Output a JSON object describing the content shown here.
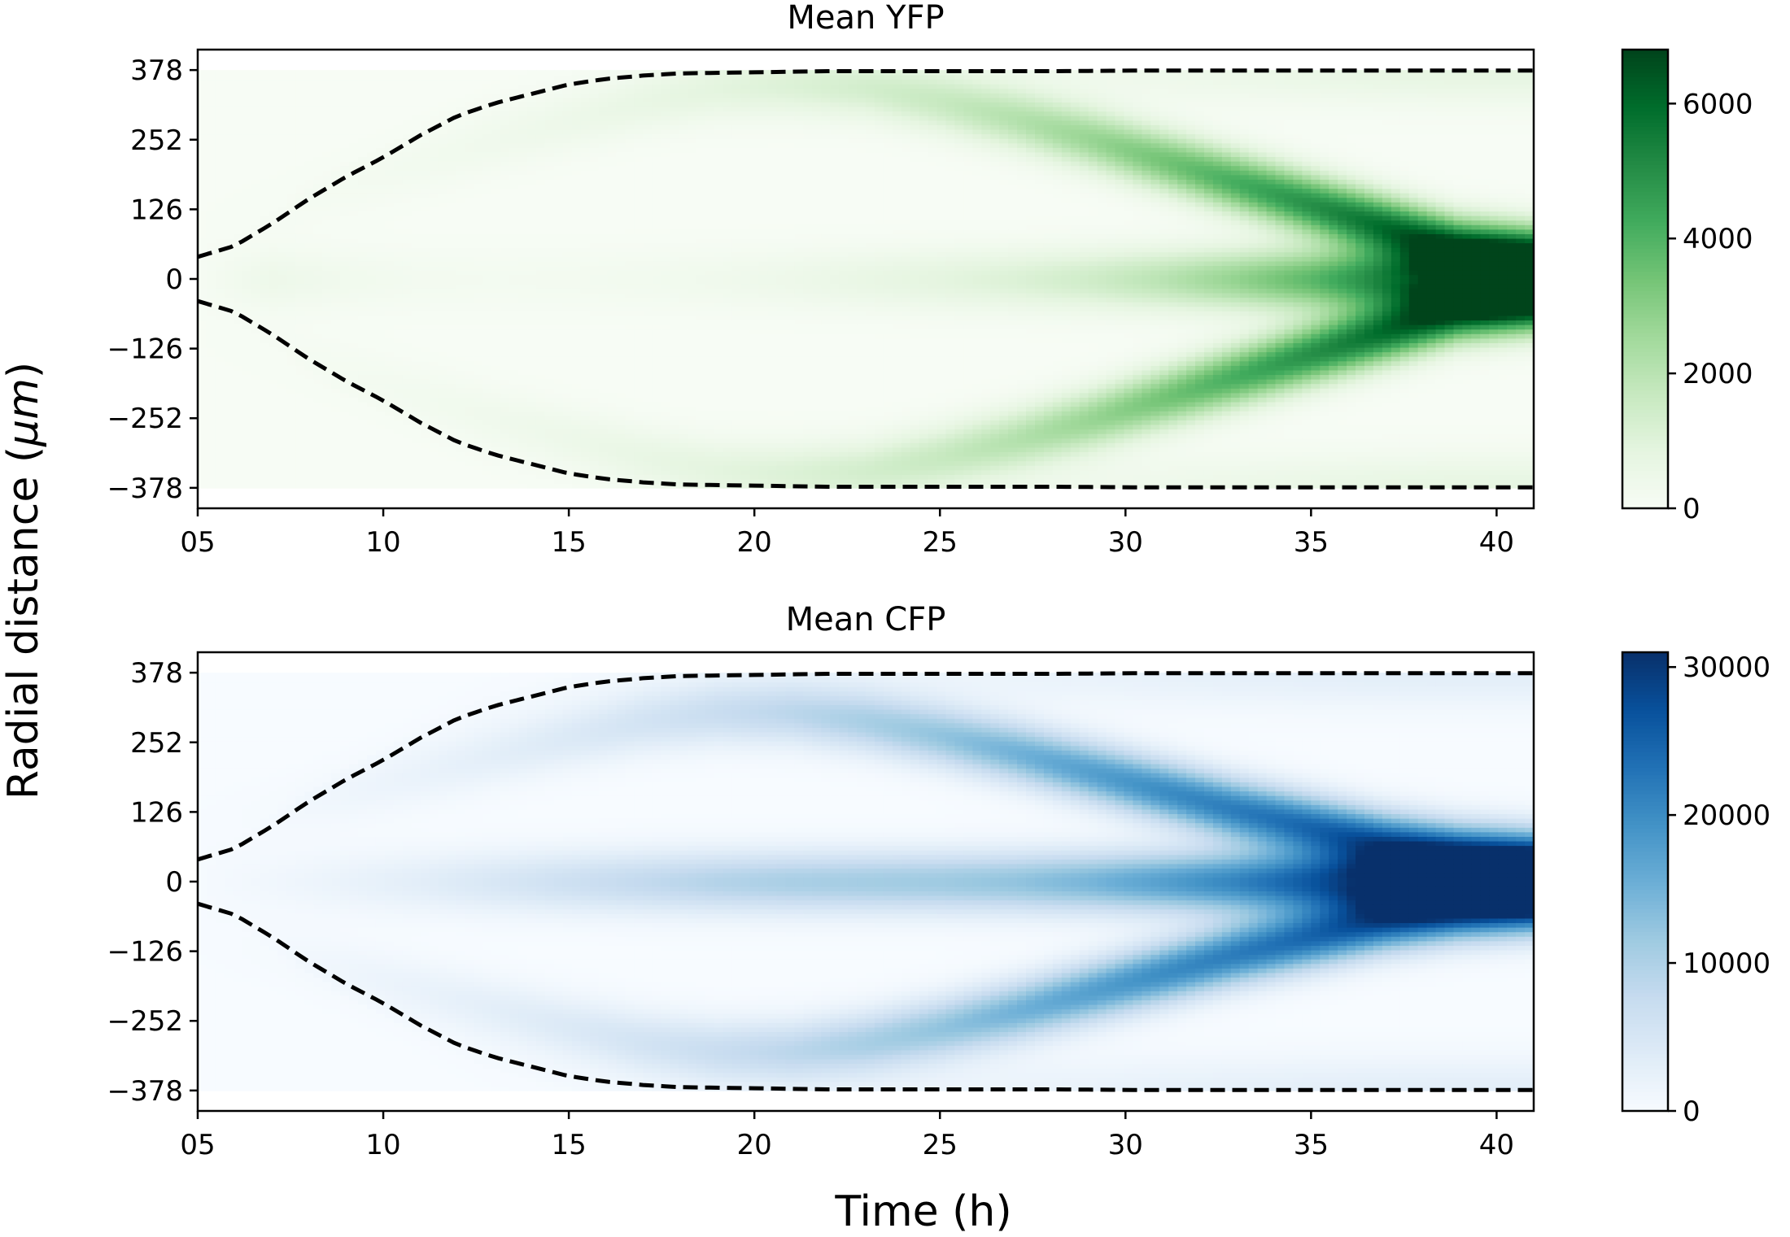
{
  "figure": {
    "xlabel": "Time (h)",
    "ylabel": "Radial distance (μm)",
    "ylabel_prefix": "Radial distance (",
    "ylabel_unit": "μm",
    "ylabel_suffix": ")"
  },
  "chart_data": [
    {
      "type": "heatmap",
      "title": "Mean YFP",
      "colormap": "Greens",
      "colormap_stops": [
        "#f7fcf5",
        "#e5f5e0",
        "#c7e9c0",
        "#a1d99b",
        "#74c476",
        "#41ab5d",
        "#238b45",
        "#006d2c",
        "#00441b"
      ],
      "xlim": [
        5,
        41
      ],
      "xticks": [
        5,
        10,
        15,
        20,
        25,
        30,
        35,
        40
      ],
      "xtick_labels": [
        "05",
        "10",
        "15",
        "20",
        "25",
        "30",
        "35",
        "40"
      ],
      "ylim": [
        -415,
        415
      ],
      "yticks": [
        378,
        252,
        126,
        0,
        -126,
        -252,
        -378
      ],
      "ytick_labels": [
        "378",
        "252",
        "126",
        "0",
        "−126",
        "−252",
        "−378"
      ],
      "color_range": [
        0,
        6800
      ],
      "colorbar_ticks": [
        0,
        2000,
        4000,
        6000
      ],
      "colorbar_tick_labels": [
        "0",
        "2000",
        "4000",
        "6000"
      ],
      "time_h": [
        5,
        7,
        9,
        11,
        13,
        15,
        17,
        19,
        21,
        23,
        25,
        27,
        29,
        31,
        33,
        35,
        37,
        39,
        41
      ],
      "ring_radius_um": [
        110,
        135,
        170,
        210,
        250,
        285,
        320,
        345,
        350,
        345,
        320,
        290,
        255,
        215,
        175,
        135,
        95,
        55,
        40
      ],
      "ring_intensity": [
        30,
        80,
        150,
        230,
        330,
        450,
        620,
        800,
        1000,
        1250,
        1600,
        2100,
        2700,
        3400,
        4200,
        5000,
        5800,
        6300,
        6400
      ],
      "center_intensity": [
        80,
        450,
        300,
        200,
        180,
        200,
        250,
        330,
        450,
        650,
        850,
        1100,
        1450,
        2000,
        2800,
        3800,
        5200,
        6500,
        6300
      ],
      "edge_time_h": [
        5,
        6,
        7,
        8,
        9,
        10,
        11,
        12,
        13,
        14,
        15,
        16,
        17,
        18,
        19,
        20,
        21,
        22,
        24,
        26,
        28,
        30,
        32,
        34,
        36,
        38,
        40,
        41
      ],
      "edge_radius_um": [
        40,
        60,
        100,
        145,
        185,
        220,
        260,
        295,
        318,
        335,
        352,
        362,
        368,
        372,
        373,
        374,
        375,
        376,
        376,
        376,
        376,
        377,
        377,
        377,
        377,
        377,
        377,
        377
      ]
    },
    {
      "type": "heatmap",
      "title": "Mean CFP",
      "colormap": "Blues",
      "colormap_stops": [
        "#f7fbff",
        "#deebf7",
        "#c6dbef",
        "#9ecae1",
        "#6baed6",
        "#4292c6",
        "#2171b5",
        "#08519c",
        "#08306b"
      ],
      "xlim": [
        5,
        41
      ],
      "xticks": [
        5,
        10,
        15,
        20,
        25,
        30,
        35,
        40
      ],
      "xtick_labels": [
        "05",
        "10",
        "15",
        "20",
        "25",
        "30",
        "35",
        "40"
      ],
      "ylim": [
        -415,
        415
      ],
      "yticks": [
        378,
        252,
        126,
        0,
        -126,
        -252,
        -378
      ],
      "ytick_labels": [
        "378",
        "252",
        "126",
        "0",
        "−126",
        "−252",
        "−378"
      ],
      "color_range": [
        0,
        31000
      ],
      "colorbar_ticks": [
        0,
        10000,
        20000,
        30000
      ],
      "colorbar_tick_labels": [
        "0",
        "10000",
        "20000",
        "30000"
      ],
      "time_h": [
        5,
        7,
        9,
        11,
        13,
        15,
        17,
        19,
        21,
        23,
        25,
        27,
        29,
        31,
        33,
        35,
        37,
        39,
        41
      ],
      "ring_radius_um": [
        110,
        130,
        160,
        195,
        230,
        262,
        290,
        305,
        305,
        290,
        265,
        235,
        200,
        165,
        130,
        100,
        70,
        50,
        40
      ],
      "ring_intensity": [
        200,
        500,
        1200,
        2000,
        3000,
        4200,
        5600,
        7000,
        8500,
        10500,
        12500,
        15000,
        17500,
        20000,
        22000,
        24000,
        25500,
        26000,
        26000
      ],
      "center_intensity": [
        300,
        1000,
        2000,
        3200,
        4800,
        6500,
        8000,
        9500,
        10500,
        11000,
        11500,
        12500,
        14500,
        17500,
        21000,
        25500,
        30000,
        30000,
        29000
      ],
      "edge_time_h": [
        5,
        6,
        7,
        8,
        9,
        10,
        11,
        12,
        13,
        14,
        15,
        16,
        17,
        18,
        19,
        20,
        21,
        22,
        24,
        26,
        28,
        30,
        32,
        34,
        36,
        38,
        40,
        41
      ],
      "edge_radius_um": [
        40,
        60,
        100,
        145,
        185,
        220,
        260,
        295,
        318,
        335,
        352,
        362,
        368,
        372,
        373,
        374,
        375,
        376,
        376,
        376,
        376,
        377,
        377,
        377,
        377,
        377,
        377,
        377
      ]
    }
  ]
}
